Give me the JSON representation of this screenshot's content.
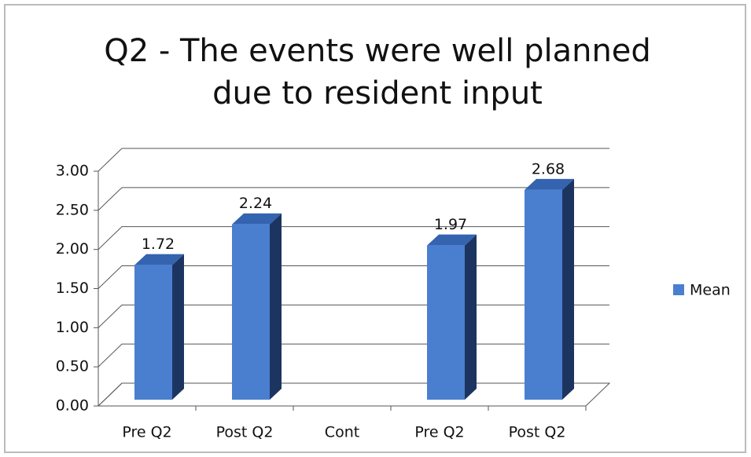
{
  "chart_data": {
    "type": "bar3d",
    "title": "Q2 - The events were well planned due to resident input",
    "categories": [
      "Pre Q2",
      "Post Q2",
      "Cont",
      "Pre Q2",
      "Post Q2"
    ],
    "series": [
      {
        "name": "Mean",
        "color": "#4a7fd0",
        "values": [
          1.72,
          2.24,
          null,
          1.97,
          2.68
        ]
      }
    ],
    "ylim": [
      0,
      3
    ],
    "yticks": [
      {
        "value": 0,
        "label": "0.00"
      },
      {
        "value": 0.5,
        "label": "0.50"
      },
      {
        "value": 1,
        "label": "1.00"
      },
      {
        "value": 1.5,
        "label": "1.50"
      },
      {
        "value": 2,
        "label": "2.00"
      },
      {
        "value": 2.5,
        "label": "2.50"
      },
      {
        "value": 3,
        "label": "3.00"
      }
    ],
    "grid": true,
    "legend": "right"
  }
}
